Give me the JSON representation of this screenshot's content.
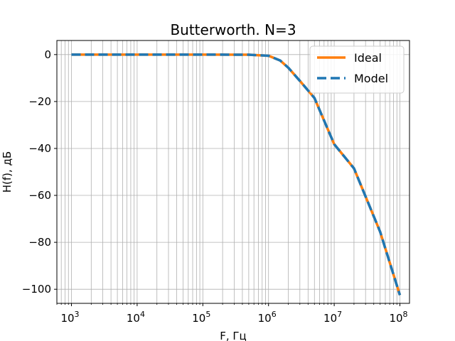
{
  "chart_data": {
    "type": "line",
    "title": "Butterworth. N=3",
    "xlabel": "F, Гц",
    "ylabel": "H(f), дБ",
    "x_scale": "log",
    "xlim": [
      600,
      140000000
    ],
    "ylim": [
      -106,
      6
    ],
    "x_ticks": [
      {
        "base": "10",
        "exp": "3",
        "value": 1000
      },
      {
        "base": "10",
        "exp": "4",
        "value": 10000
      },
      {
        "base": "10",
        "exp": "5",
        "value": 100000
      },
      {
        "base": "10",
        "exp": "6",
        "value": 1000000
      },
      {
        "base": "10",
        "exp": "7",
        "value": 10000000
      },
      {
        "base": "10",
        "exp": "8",
        "value": 100000000
      }
    ],
    "y_ticks": [
      {
        "label": "0",
        "value": 0
      },
      {
        "label": "−20",
        "value": -20
      },
      {
        "label": "−40",
        "value": -40
      },
      {
        "label": "−60",
        "value": -60
      },
      {
        "label": "−80",
        "value": -80
      },
      {
        "label": "−100",
        "value": -100
      }
    ],
    "grid": true,
    "legend_position": "top-right",
    "series": [
      {
        "name": "Ideal",
        "color": "#ff7f0e",
        "style": "solid",
        "x": [
          1000,
          10000,
          100000,
          500000,
          1000000,
          1500000,
          2000000,
          3000000,
          5000000,
          10000000,
          20000000,
          50000000,
          100000000
        ],
        "y": [
          0,
          0,
          0,
          -0.07,
          -0.5,
          -2.5,
          -5.6,
          -11.2,
          -18.5,
          -38.2,
          -48.5,
          -75.5,
          -102.5
        ]
      },
      {
        "name": "Model",
        "color": "#1f77b4",
        "style": "dashed",
        "x": [
          1000,
          10000,
          100000,
          500000,
          1000000,
          1500000,
          2000000,
          3000000,
          5000000,
          10000000,
          20000000,
          50000000,
          100000000
        ],
        "y": [
          0,
          0,
          0,
          -0.07,
          -0.5,
          -2.5,
          -5.6,
          -11.2,
          -18.5,
          -38.2,
          -48.5,
          -75.5,
          -102.5
        ]
      }
    ]
  }
}
